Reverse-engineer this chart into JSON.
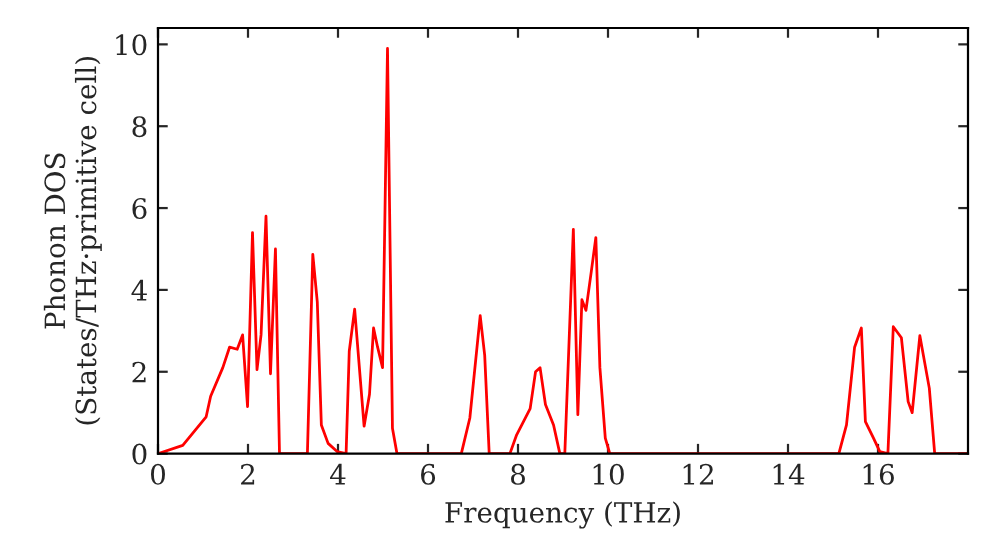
{
  "chart_data": {
    "type": "line",
    "xlabel": "Frequency (THz)",
    "ylabel": "Phonon DOS\n(States/THz·primitive cell)",
    "xlim": [
      0,
      18
    ],
    "ylim": [
      0,
      10.4
    ],
    "xticks": [
      0,
      2,
      4,
      6,
      8,
      10,
      12,
      14,
      16
    ],
    "yticks": [
      0,
      2,
      4,
      6,
      8,
      10
    ],
    "grid": false,
    "marker": "none",
    "line_style": "solid",
    "series": [
      {
        "color": "#ff0000",
        "x": [
          0,
          0.55,
          1.07,
          1.17,
          1.44,
          1.59,
          1.76,
          1.88,
          1.99,
          2.1,
          2.2,
          2.29,
          2.4,
          2.5,
          2.61,
          2.7,
          3.32,
          3.44,
          3.54,
          3.63,
          3.78,
          3.98,
          4.18,
          4.25,
          4.37,
          4.58,
          4.7,
          4.79,
          4.88,
          4.99,
          5.1,
          5.21,
          5.31,
          6.74,
          6.93,
          7.16,
          7.26,
          7.36,
          7.82,
          7.97,
          8.27,
          8.39,
          8.49,
          8.61,
          8.79,
          8.93,
          9.04,
          9.23,
          9.33,
          9.42,
          9.51,
          9.63,
          9.73,
          9.82,
          9.94,
          10.04,
          15.13,
          15.3,
          15.48,
          15.63,
          15.72,
          15.9,
          16.04,
          16.22,
          16.34,
          16.52,
          16.67,
          16.76,
          16.93,
          17.14,
          17.26,
          18
        ],
        "values": [
          0,
          0.2,
          0.9,
          1.4,
          2.1,
          2.6,
          2.55,
          2.9,
          1.15,
          5.4,
          2.05,
          2.9,
          5.8,
          1.95,
          5.0,
          0,
          0,
          4.87,
          3.7,
          0.7,
          0.25,
          0.05,
          0,
          2.5,
          3.53,
          0.67,
          1.45,
          3.07,
          2.6,
          2.1,
          9.9,
          0.62,
          0,
          0,
          0.87,
          3.37,
          2.4,
          0,
          0,
          0.46,
          1.1,
          2.0,
          2.1,
          1.2,
          0.7,
          0,
          0,
          5.48,
          0.95,
          3.76,
          3.5,
          4.46,
          5.28,
          2.1,
          0.38,
          0,
          0,
          0.7,
          2.6,
          3.07,
          0.78,
          0.38,
          0.05,
          0,
          3.1,
          2.83,
          1.27,
          1.0,
          2.88,
          1.6,
          0,
          0
        ]
      }
    ]
  }
}
